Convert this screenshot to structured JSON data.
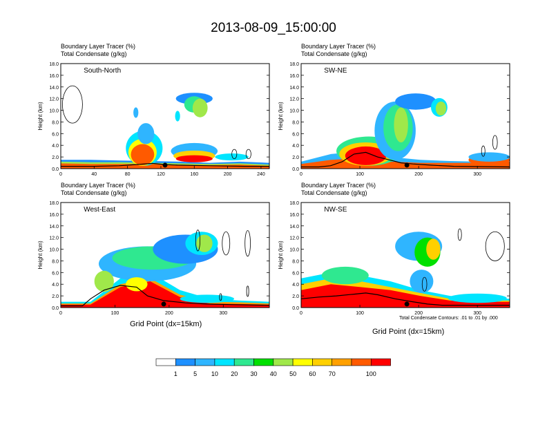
{
  "title": "2013-08-09_15:00:00",
  "footnote": "Total Condensate Contours: .01 to .01 by .000",
  "colors": {
    "levels": [
      "#ffffff",
      "#1e90ff",
      "#2fb5ff",
      "#00e5ff",
      "#2fe890",
      "#00e000",
      "#a0e84a",
      "#ffff00",
      "#ffd000",
      "#ffa000",
      "#ff5a00",
      "#ff0000"
    ],
    "contour": "#000000"
  },
  "colorbar": {
    "labels": [
      "1",
      "5",
      "10",
      "20",
      "30",
      "40",
      "50",
      "60",
      "70",
      "100"
    ]
  },
  "chart_data": [
    {
      "type": "heatmap",
      "section": "South-North",
      "field_labels": [
        "Boundary Layer Tracer   (%)",
        "Total Condensate   (g/kg)"
      ],
      "ylabel": "Height (km)",
      "xlabel": "",
      "xlim": [
        0,
        250
      ],
      "ylim": [
        0,
        18
      ],
      "xticks": [
        "0",
        "40",
        "80",
        "120",
        "160",
        "200",
        "240"
      ],
      "xtick_values": [
        0,
        40,
        80,
        120,
        160,
        200,
        240
      ],
      "yticks": [
        "0.0",
        "2.0",
        "4.0",
        "6.0",
        "8.0",
        "10.0",
        "12.0",
        "14.0",
        "16.0",
        "18.0"
      ],
      "marker_x": 125,
      "terrain": [
        [
          0,
          0.4
        ],
        [
          40,
          0.4
        ],
        [
          70,
          0.5
        ],
        [
          90,
          0.7
        ],
        [
          110,
          0.9
        ],
        [
          125,
          0.7
        ],
        [
          140,
          0.6
        ],
        [
          180,
          0.5
        ],
        [
          220,
          0.4
        ],
        [
          250,
          0.4
        ]
      ],
      "blobs": [
        {
          "x": [
            0,
            250
          ],
          "top": [
            1.5,
            1.5,
            1.4,
            1.3,
            1.2,
            1.0,
            1.2,
            1.0
          ],
          "level": 1
        },
        {
          "x": [
            0,
            250
          ],
          "top": [
            1.2,
            1.1,
            1.1,
            1.0,
            0.9,
            0.8,
            0.9,
            0.7
          ],
          "level": 6
        },
        {
          "x": [
            0,
            250
          ],
          "top": [
            0.9,
            0.8,
            0.8,
            0.8,
            0.7,
            0.6,
            0.7,
            0.5
          ],
          "level": 10
        },
        {
          "cx": 100,
          "cy": 3.5,
          "rx": 22,
          "ry": 3.0,
          "level": 3
        },
        {
          "cx": 98,
          "cy": 2.8,
          "rx": 17,
          "ry": 2.3,
          "level": 7
        },
        {
          "cx": 98,
          "cy": 2.4,
          "rx": 14,
          "ry": 1.8,
          "level": 10
        },
        {
          "cx": 102,
          "cy": 6.0,
          "rx": 10,
          "ry": 1.8,
          "level": 2
        },
        {
          "cx": 160,
          "cy": 3.0,
          "rx": 28,
          "ry": 1.4,
          "level": 2
        },
        {
          "cx": 160,
          "cy": 2.2,
          "rx": 25,
          "ry": 0.9,
          "level": 8
        },
        {
          "cx": 160,
          "cy": 1.7,
          "rx": 22,
          "ry": 0.6,
          "level": 11
        },
        {
          "cx": 205,
          "cy": 2.0,
          "rx": 20,
          "ry": 0.6,
          "level": 3
        },
        {
          "cx": 160,
          "cy": 12.0,
          "rx": 22,
          "ry": 1.0,
          "level": 1
        },
        {
          "cx": 160,
          "cy": 11.0,
          "rx": 12,
          "ry": 1.4,
          "level": 4
        },
        {
          "cx": 167,
          "cy": 10.4,
          "rx": 9,
          "ry": 1.6,
          "level": 6
        },
        {
          "cx": 90,
          "cy": 9.6,
          "rx": 3,
          "ry": 0.9,
          "level": 2
        },
        {
          "cx": 140,
          "cy": 9.0,
          "rx": 3,
          "ry": 0.9,
          "level": 3
        }
      ],
      "contours": [
        {
          "cx": 14,
          "cy": 11.0,
          "rx": 12,
          "ry": 3.2
        },
        {
          "cx": 208,
          "cy": 2.5,
          "rx": 3,
          "ry": 0.8
        },
        {
          "cx": 225,
          "cy": 2.5,
          "rx": 3,
          "ry": 0.8
        }
      ]
    },
    {
      "type": "heatmap",
      "section": "SW-NE",
      "field_labels": [
        "Boundary Layer Tracer   (%)",
        "Total Condensate   (g/kg)"
      ],
      "ylabel": "Height (km)",
      "xlabel": "",
      "xlim": [
        0,
        355
      ],
      "ylim": [
        0,
        18
      ],
      "xticks": [
        "0",
        "100",
        "200",
        "300"
      ],
      "xtick_values": [
        0,
        100,
        200,
        300
      ],
      "yticks": [
        "0.0",
        "2.0",
        "4.0",
        "6.0",
        "8.0",
        "10.0",
        "12.0",
        "14.0",
        "16.0",
        "18.0"
      ],
      "marker_x": 180,
      "terrain": [
        [
          0,
          0.3
        ],
        [
          30,
          0.3
        ],
        [
          50,
          0.5
        ],
        [
          70,
          1.2
        ],
        [
          90,
          2.5
        ],
        [
          110,
          2.8
        ],
        [
          130,
          2.0
        ],
        [
          150,
          1.5
        ],
        [
          170,
          1.0
        ],
        [
          190,
          0.8
        ],
        [
          220,
          0.6
        ],
        [
          260,
          0.4
        ],
        [
          355,
          0.3
        ]
      ],
      "blobs": [
        {
          "x": [
            0,
            355
          ],
          "top": [
            1.2,
            2.5,
            3.0,
            2.0,
            1.5,
            1.3,
            1.2,
            1.1
          ],
          "level": 2
        },
        {
          "x": [
            0,
            355
          ],
          "top": [
            0.8,
            1.5,
            1.8,
            1.2,
            1.0,
            1.0,
            1.0,
            1.2
          ],
          "level": 10
        },
        {
          "cx": 115,
          "cy": 3.0,
          "rx": 55,
          "ry": 2.5,
          "level": 4
        },
        {
          "cx": 110,
          "cy": 2.5,
          "rx": 45,
          "ry": 2.0,
          "level": 8
        },
        {
          "cx": 110,
          "cy": 2.2,
          "rx": 35,
          "ry": 1.6,
          "level": 11
        },
        {
          "cx": 160,
          "cy": 6.5,
          "rx": 35,
          "ry": 5.0,
          "level": 2
        },
        {
          "cx": 165,
          "cy": 7.0,
          "rx": 25,
          "ry": 4.0,
          "level": 4
        },
        {
          "cx": 170,
          "cy": 7.5,
          "rx": 12,
          "ry": 3.0,
          "level": 6
        },
        {
          "cx": 195,
          "cy": 11.5,
          "rx": 35,
          "ry": 1.4,
          "level": 1
        },
        {
          "cx": 235,
          "cy": 10.5,
          "rx": 14,
          "ry": 1.6,
          "level": 3
        },
        {
          "cx": 238,
          "cy": 10.3,
          "rx": 9,
          "ry": 1.2,
          "level": 6
        },
        {
          "cx": 320,
          "cy": 1.5,
          "rx": 35,
          "ry": 1.0,
          "level": 10
        },
        {
          "cx": 320,
          "cy": 2.0,
          "rx": 35,
          "ry": 0.8,
          "level": 2
        }
      ],
      "contours": [
        {
          "cx": 330,
          "cy": 4.5,
          "rx": 4,
          "ry": 1.2
        },
        {
          "cx": 310,
          "cy": 3.0,
          "rx": 3,
          "ry": 0.9
        }
      ]
    },
    {
      "type": "heatmap",
      "section": "West-East",
      "field_labels": [
        "Boundary Layer Tracer   (%)",
        "Total Condensate   (g/kg)"
      ],
      "ylabel": "Height (km)",
      "xlabel": "Grid Point (dx=15km)",
      "xlim": [
        0,
        385
      ],
      "ylim": [
        0,
        18
      ],
      "xticks": [
        "0",
        "100",
        "200",
        "300"
      ],
      "xtick_values": [
        0,
        100,
        200,
        300
      ],
      "yticks": [
        "0.0",
        "2.0",
        "4.0",
        "6.0",
        "8.0",
        "10.0",
        "12.0",
        "14.0",
        "16.0",
        "18.0"
      ],
      "marker_x": 190,
      "terrain": [
        [
          0,
          0.3
        ],
        [
          40,
          0.3
        ],
        [
          55,
          1.5
        ],
        [
          80,
          3.0
        ],
        [
          110,
          3.8
        ],
        [
          140,
          3.5
        ],
        [
          160,
          2.0
        ],
        [
          190,
          1.2
        ],
        [
          230,
          0.8
        ],
        [
          270,
          0.6
        ],
        [
          320,
          0.5
        ],
        [
          385,
          0.4
        ]
      ],
      "blobs": [
        {
          "x": [
            0,
            385
          ],
          "top": [
            1.0,
            1.0,
            5.0,
            6.0,
            3.0,
            1.5,
            1.2,
            1.0
          ],
          "level": 3
        },
        {
          "x": [
            0,
            385
          ],
          "top": [
            0.7,
            0.7,
            4.0,
            5.0,
            2.2,
            1.0,
            0.9,
            0.7
          ],
          "level": 9
        },
        {
          "x": [
            0,
            385
          ],
          "top": [
            0.5,
            0.5,
            3.5,
            4.5,
            1.8,
            0.7,
            0.6,
            0.5
          ],
          "level": 11
        },
        {
          "cx": 160,
          "cy": 7.5,
          "rx": 90,
          "ry": 3.0,
          "level": 2
        },
        {
          "cx": 170,
          "cy": 8.5,
          "rx": 75,
          "ry": 2.0,
          "level": 4
        },
        {
          "cx": 230,
          "cy": 10.0,
          "rx": 60,
          "ry": 2.5,
          "level": 1
        },
        {
          "cx": 260,
          "cy": 11.0,
          "rx": 30,
          "ry": 2.0,
          "level": 3
        },
        {
          "cx": 265,
          "cy": 11.0,
          "rx": 15,
          "ry": 1.5,
          "level": 6
        },
        {
          "cx": 80,
          "cy": 4.5,
          "rx": 18,
          "ry": 1.8,
          "level": 6
        },
        {
          "cx": 140,
          "cy": 4.0,
          "rx": 20,
          "ry": 1.2,
          "level": 7
        },
        {
          "cx": 270,
          "cy": 1.5,
          "rx": 50,
          "ry": 0.7,
          "level": 3
        }
      ],
      "contours": [
        {
          "cx": 305,
          "cy": 11.0,
          "rx": 7,
          "ry": 2.0
        },
        {
          "cx": 345,
          "cy": 11.0,
          "rx": 5,
          "ry": 2.2
        },
        {
          "cx": 253,
          "cy": 11.5,
          "rx": 4,
          "ry": 1.8
        },
        {
          "cx": 345,
          "cy": 2.8,
          "rx": 2,
          "ry": 0.9
        },
        {
          "cx": 295,
          "cy": 1.8,
          "rx": 2,
          "ry": 0.6
        }
      ]
    },
    {
      "type": "heatmap",
      "section": "NW-SE",
      "field_labels": [
        "Boundary Layer Tracer   (%)",
        "Total Condensate   (g/kg)"
      ],
      "ylabel": "Height (km)",
      "xlabel": "Grid Point (dx=15km)",
      "xlim": [
        0,
        355
      ],
      "ylim": [
        0,
        18
      ],
      "xticks": [
        "0",
        "100",
        "200",
        "300"
      ],
      "xtick_values": [
        0,
        100,
        200,
        300
      ],
      "yticks": [
        "0.0",
        "2.0",
        "4.0",
        "6.0",
        "8.0",
        "10.0",
        "12.0",
        "14.0",
        "16.0",
        "18.0"
      ],
      "marker_x": 180,
      "terrain": [
        [
          0,
          1.5
        ],
        [
          30,
          1.8
        ],
        [
          60,
          2.0
        ],
        [
          90,
          2.3
        ],
        [
          110,
          2.5
        ],
        [
          130,
          2.2
        ],
        [
          160,
          1.5
        ],
        [
          190,
          1.0
        ],
        [
          215,
          0.6
        ],
        [
          240,
          0.4
        ],
        [
          300,
          0.4
        ],
        [
          355,
          0.4
        ]
      ],
      "blobs": [
        {
          "x": [
            0,
            355
          ],
          "top": [
            5.0,
            6.0,
            5.5,
            4.5,
            3.0,
            2.0,
            1.5,
            1.5
          ],
          "level": 3
        },
        {
          "x": [
            0,
            355
          ],
          "top": [
            4.0,
            5.0,
            4.5,
            3.5,
            2.5,
            1.5,
            1.2,
            1.2
          ],
          "level": 8
        },
        {
          "x": [
            0,
            355
          ],
          "top": [
            3.0,
            4.0,
            3.5,
            3.0,
            2.0,
            1.2,
            1.0,
            1.0
          ],
          "level": 11
        },
        {
          "cx": 200,
          "cy": 10.5,
          "rx": 40,
          "ry": 2.5,
          "level": 2
        },
        {
          "cx": 215,
          "cy": 9.5,
          "rx": 22,
          "ry": 2.5,
          "level": 5
        },
        {
          "cx": 225,
          "cy": 10.0,
          "rx": 12,
          "ry": 1.8,
          "level": 8
        },
        {
          "cx": 205,
          "cy": 4.5,
          "rx": 20,
          "ry": 2.0,
          "level": 2
        },
        {
          "cx": 75,
          "cy": 5.5,
          "rx": 40,
          "ry": 1.5,
          "level": 4
        },
        {
          "cx": 300,
          "cy": 1.6,
          "rx": 50,
          "ry": 0.8,
          "level": 3
        }
      ],
      "contours": [
        {
          "cx": 330,
          "cy": 10.5,
          "rx": 16,
          "ry": 2.5
        },
        {
          "cx": 270,
          "cy": 12.5,
          "rx": 3,
          "ry": 1.0
        },
        {
          "cx": 210,
          "cy": 4.0,
          "rx": 4,
          "ry": 1.2
        }
      ]
    }
  ]
}
